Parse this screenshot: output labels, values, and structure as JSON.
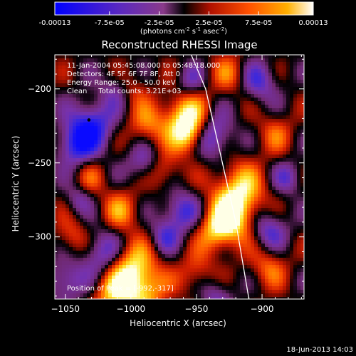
{
  "chart_data": {
    "type": "heatmap",
    "title": "Reconstructed RHESSI Image",
    "xlabel": "Heliocentric X (arcsec)",
    "ylabel": "Heliocentric Y (arcsec)",
    "xlim": [
      -1058,
      -868
    ],
    "ylim": [
      -342,
      -177
    ],
    "xticks": [
      -1050,
      -1000,
      -950,
      -900
    ],
    "yticks": [
      -200,
      -250,
      -300
    ],
    "colorbar": {
      "range": [
        -0.00013,
        0.00013
      ],
      "ticks": [
        -0.00013,
        -7.5e-05,
        -2.5e-05,
        2.5e-05,
        7.5e-05,
        0.00013
      ],
      "tick_labels": [
        "-0.00013",
        "-7.5e-05",
        "-2.5e-05",
        "2.5e-05",
        "7.5e-05",
        "0.00013"
      ],
      "label_main": "(photons cm",
      "label_exp1": "-2",
      "label_mid": " s",
      "label_exp2": "-1",
      "label_end": " asec",
      "label_exp3": "-2",
      "label_close": ")"
    },
    "info_lines": [
      "11-Jan-2004 05:45:08.000 to 05:48:18.000",
      "Detectors: 4F 5F 6F 7F 8F, Att 0",
      "Energy Range: 25.0 - 50.0 keV",
      "Clean     Total counts: 3.21E+03"
    ],
    "peak_label": "Position of Peak = [-992,-317]",
    "peak_position": [
      -992,
      -317
    ],
    "marker_point": [
      -1032,
      -221
    ],
    "limb_line": [
      [
        -954,
        -177
      ],
      [
        -943,
        -200
      ],
      [
        -920,
        -290
      ],
      [
        -910,
        -342
      ]
    ],
    "blobs": [
      {
        "x": -1002,
        "y": -322,
        "s": 14,
        "a": 1.0
      },
      {
        "x": -990,
        "y": -338,
        "s": 12,
        "a": 0.6
      },
      {
        "x": -958,
        "y": -219,
        "s": 12,
        "a": 0.95
      },
      {
        "x": -955,
        "y": -232,
        "s": 9,
        "a": 0.7
      },
      {
        "x": -918,
        "y": -270,
        "s": 14,
        "a": 0.85
      },
      {
        "x": -922,
        "y": -288,
        "s": 12,
        "a": 0.7
      },
      {
        "x": -935,
        "y": -296,
        "s": 10,
        "a": 0.65
      },
      {
        "x": -1015,
        "y": -340,
        "s": 10,
        "a": 0.55
      },
      {
        "x": -988,
        "y": -225,
        "s": 10,
        "a": 0.55
      },
      {
        "x": -1008,
        "y": -282,
        "s": 10,
        "a": 0.55
      },
      {
        "x": -975,
        "y": -255,
        "s": 9,
        "a": 0.5
      },
      {
        "x": -950,
        "y": -325,
        "s": 10,
        "a": 0.45
      },
      {
        "x": -895,
        "y": -320,
        "s": 10,
        "a": 0.5
      },
      {
        "x": -1045,
        "y": -300,
        "s": 9,
        "a": 0.45
      },
      {
        "x": -925,
        "y": -190,
        "s": 10,
        "a": 0.45
      },
      {
        "x": -1030,
        "y": -260,
        "s": 8,
        "a": 0.35
      },
      {
        "x": -1000,
        "y": -200,
        "s": 9,
        "a": 0.4
      },
      {
        "x": -890,
        "y": -230,
        "s": 10,
        "a": 0.4
      },
      {
        "x": -1030,
        "y": -225,
        "s": 12,
        "a": -0.85
      },
      {
        "x": -1043,
        "y": -238,
        "s": 10,
        "a": -0.7
      },
      {
        "x": -938,
        "y": -232,
        "s": 11,
        "a": -0.8
      },
      {
        "x": -1020,
        "y": -312,
        "s": 12,
        "a": -0.8
      },
      {
        "x": -962,
        "y": -283,
        "s": 10,
        "a": -0.7
      },
      {
        "x": -990,
        "y": -250,
        "s": 9,
        "a": -0.55
      },
      {
        "x": -895,
        "y": -295,
        "s": 10,
        "a": -0.65
      },
      {
        "x": -902,
        "y": -195,
        "s": 10,
        "a": -0.6
      },
      {
        "x": -1050,
        "y": -330,
        "s": 10,
        "a": -0.6
      },
      {
        "x": -975,
        "y": -300,
        "s": 8,
        "a": -0.5
      },
      {
        "x": -1010,
        "y": -200,
        "s": 9,
        "a": -0.45
      },
      {
        "x": -955,
        "y": -195,
        "s": 8,
        "a": -0.45
      },
      {
        "x": -880,
        "y": -260,
        "s": 8,
        "a": -0.5
      },
      {
        "x": -1040,
        "y": -275,
        "s": 7,
        "a": -0.4
      },
      {
        "x": -935,
        "y": -340,
        "s": 9,
        "a": -0.5
      }
    ]
  },
  "footer": {
    "timestamp": "18-Jun-2013 14:03"
  }
}
